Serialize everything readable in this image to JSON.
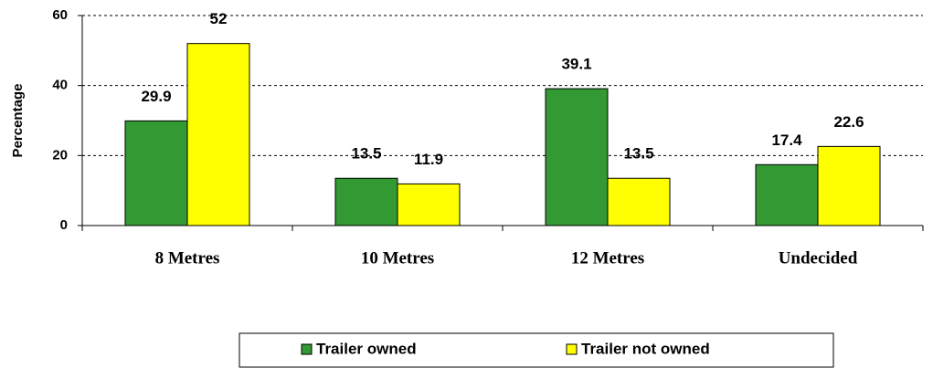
{
  "chart_data": {
    "type": "bar",
    "y_label": "Percentage",
    "categories": [
      "8 Metres",
      "10 Metres",
      "12 Metres",
      "Undecided"
    ],
    "series": [
      {
        "name": "Trailer owned",
        "color": "#339933",
        "values": [
          29.9,
          13.5,
          39.1,
          17.4
        ]
      },
      {
        "name": "Trailer not owned",
        "color": "#ffff00",
        "values": [
          52,
          11.9,
          13.5,
          22.6
        ]
      }
    ],
    "ylim": [
      0,
      60
    ],
    "yticks": [
      0,
      20,
      40,
      60
    ],
    "grid": true,
    "legend": "bottom"
  }
}
